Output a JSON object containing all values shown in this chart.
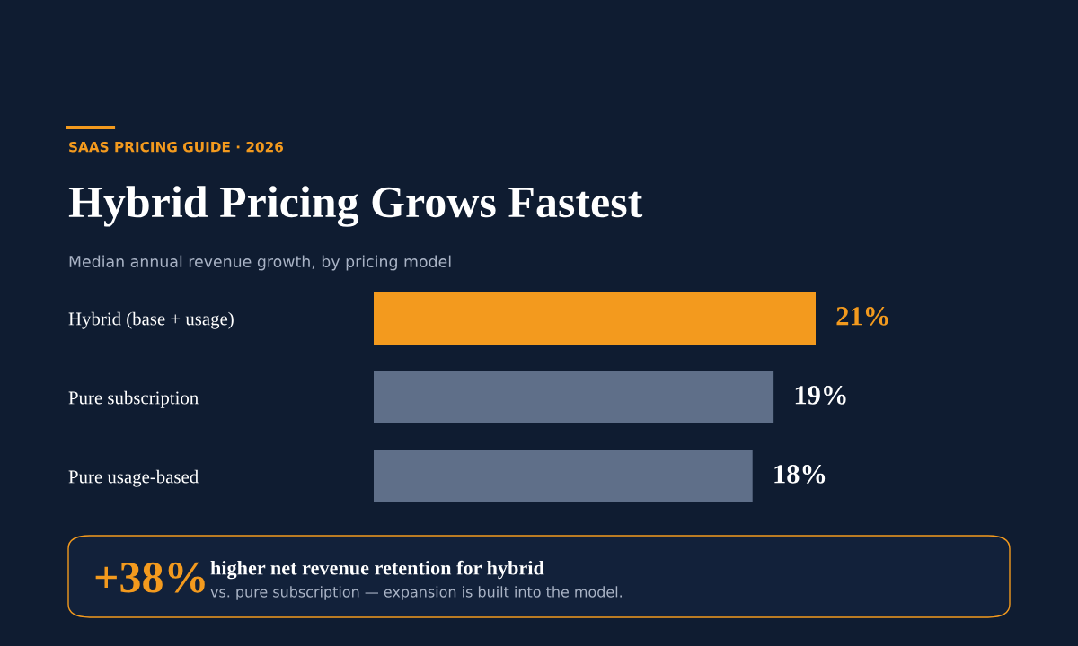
{
  "chart_data": {
    "type": "bar",
    "orientation": "horizontal",
    "title": "Hybrid Pricing Grows Fastest",
    "subtitle": "Median annual revenue growth, by pricing model",
    "categories": [
      "Hybrid (base + usage)",
      "Pure subscription",
      "Pure usage-based"
    ],
    "values": [
      21,
      19,
      18
    ],
    "colors": [
      "#f39a1e",
      "#5f6f89",
      "#5f6f89"
    ],
    "value_labels": [
      "21%",
      "19%",
      "18%"
    ],
    "tick_labels": "y",
    "annotations": [
      "SAAS PRICING GUIDE · 2026",
      "+38%",
      "higher net revenue retention for hybrid",
      "vs. pure subscription — expansion is built into the model."
    ]
  }
}
